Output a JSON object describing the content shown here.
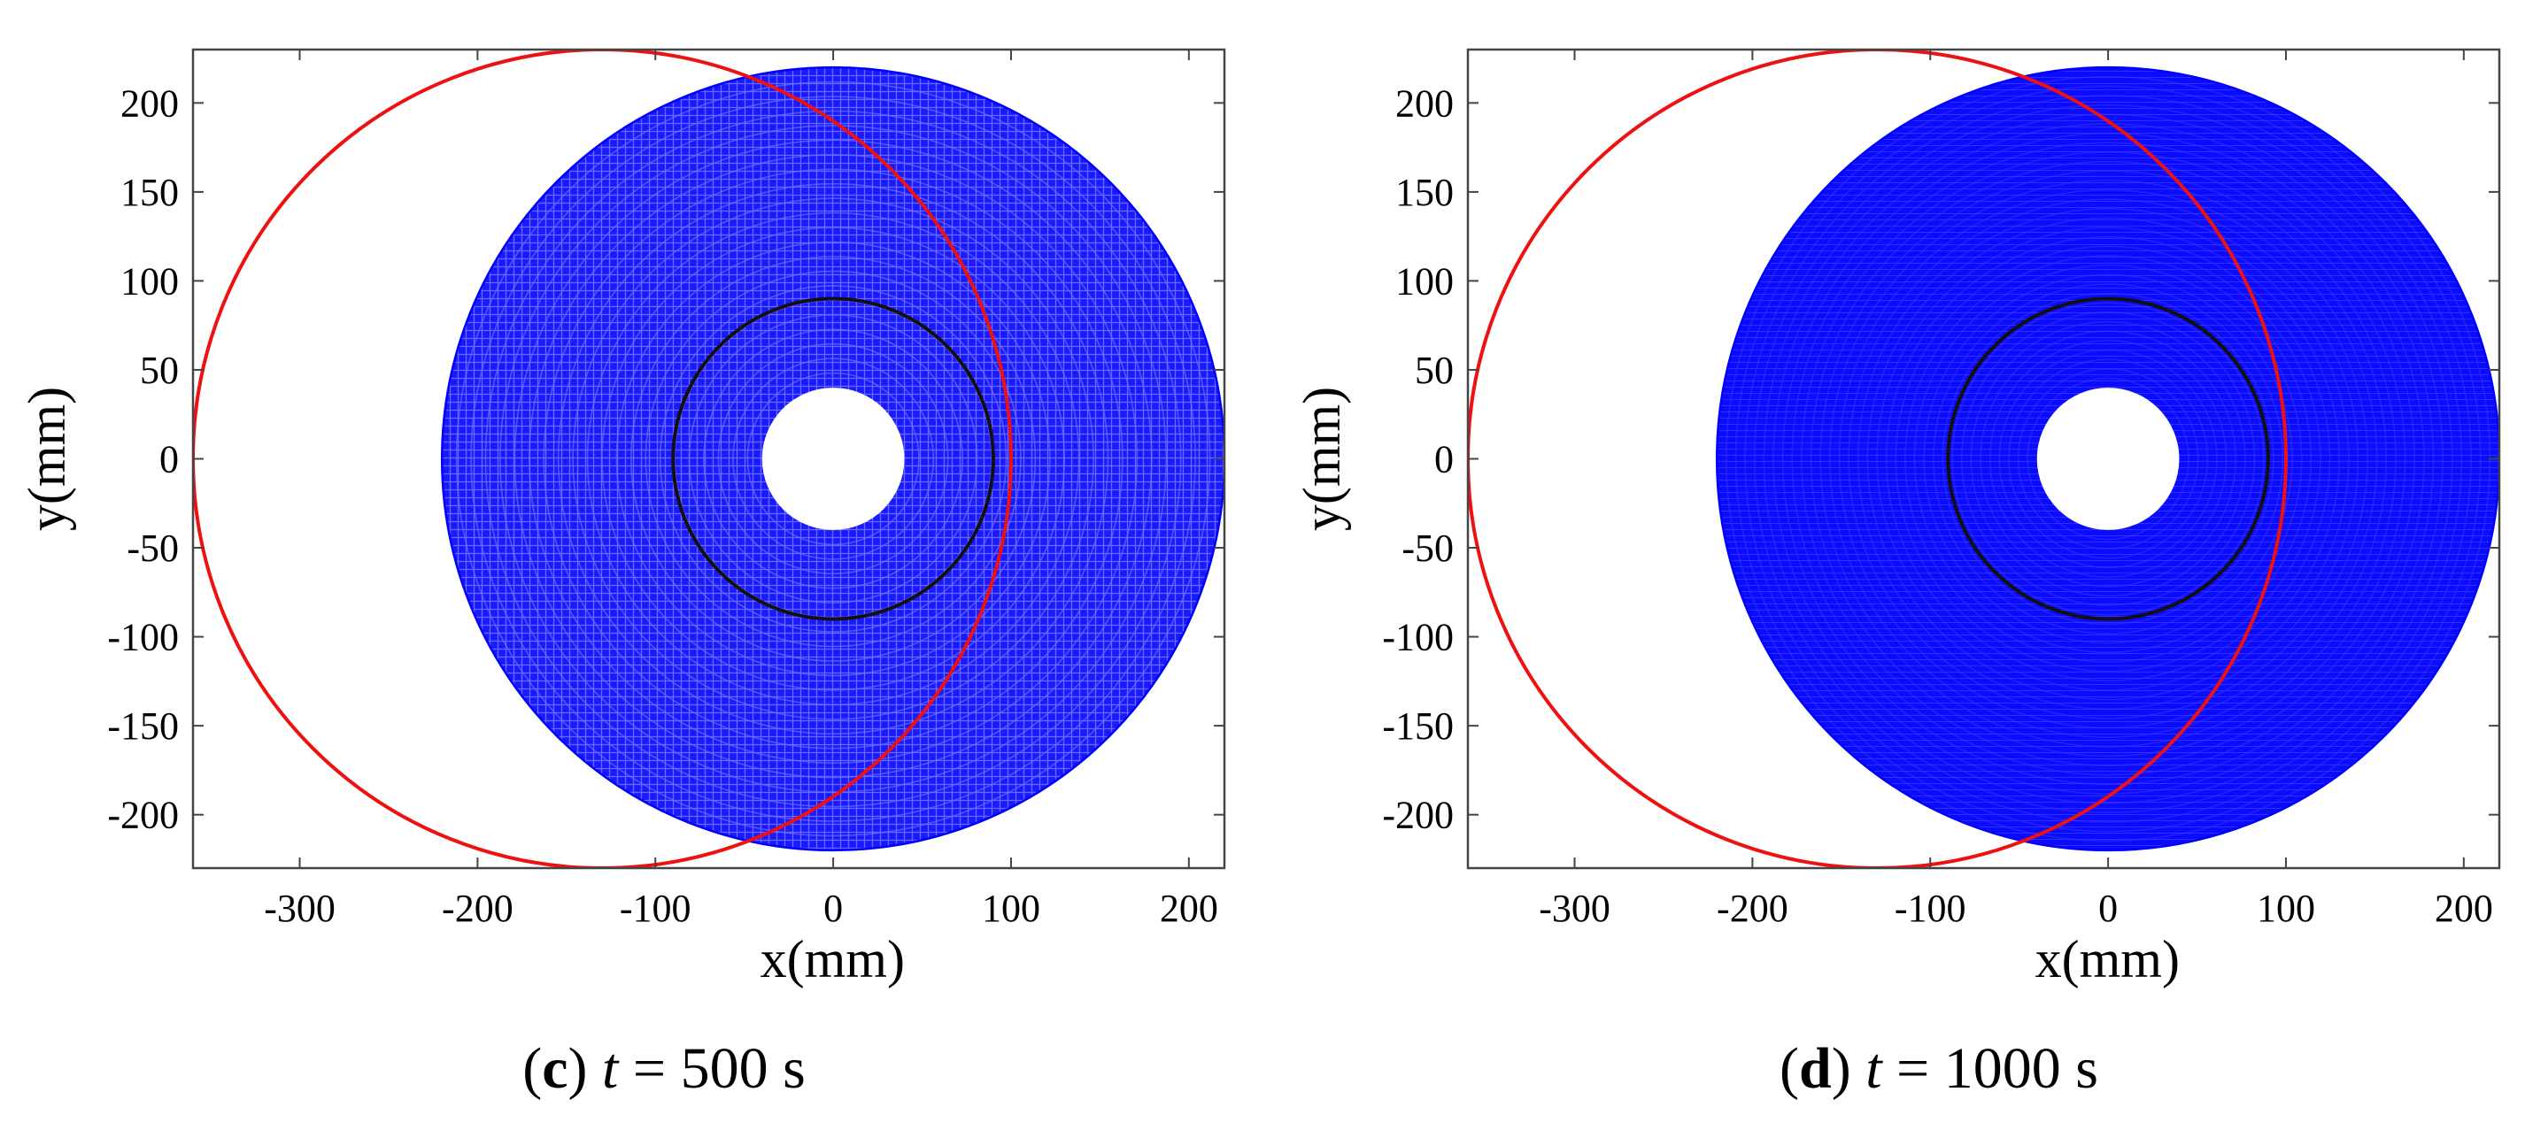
{
  "chart_data": [
    {
      "type": "scatter",
      "panel_label": "c",
      "caption_var": "t",
      "caption_eq": " = ",
      "caption_value": "500 s",
      "xlabel": "x(mm)",
      "ylabel": "y(mm)",
      "xlim": [
        -360,
        220
      ],
      "ylim": [
        -230,
        230
      ],
      "xticks": [
        -300,
        -200,
        -100,
        0,
        100,
        200
      ],
      "yticks": [
        200,
        150,
        100,
        50,
        0,
        -50,
        -100,
        -150,
        -200
      ],
      "xtick_labels": [
        "-300",
        "-200",
        "-100",
        "0",
        "100",
        "200"
      ],
      "ytick_labels": [
        "200",
        "150",
        "100",
        "50",
        "0",
        "-50",
        "-100",
        "-150",
        "-200"
      ],
      "grid": false,
      "series": [
        {
          "name": "trajectory",
          "shape": "annulus",
          "center": [
            0,
            0
          ],
          "inner_radius": 40,
          "outer_radius": 220,
          "color": "#0000ff",
          "density": "medium"
        },
        {
          "name": "black circle",
          "shape": "circle",
          "center": [
            0,
            0
          ],
          "radius": 90,
          "color": "#111111"
        },
        {
          "name": "red circle",
          "shape": "circle",
          "center": [
            -130,
            0
          ],
          "radius": 230,
          "color": "#ee1111"
        }
      ]
    },
    {
      "type": "scatter",
      "panel_label": "d",
      "caption_var": "t",
      "caption_eq": " = ",
      "caption_value": "1000 s",
      "xlabel": "x(mm)",
      "ylabel": "y(mm)",
      "xlim": [
        -360,
        220
      ],
      "ylim": [
        -230,
        230
      ],
      "xticks": [
        -300,
        -200,
        -100,
        0,
        100,
        200
      ],
      "yticks": [
        200,
        150,
        100,
        50,
        0,
        -50,
        -100,
        -150,
        -200
      ],
      "xtick_labels": [
        "-300",
        "-200",
        "-100",
        "0",
        "100",
        "200"
      ],
      "ytick_labels": [
        "200",
        "150",
        "100",
        "50",
        "0",
        "-50",
        "-100",
        "-150",
        "-200"
      ],
      "grid": false,
      "series": [
        {
          "name": "trajectory",
          "shape": "annulus",
          "center": [
            0,
            0
          ],
          "inner_radius": 40,
          "outer_radius": 220,
          "color": "#0000ff",
          "density": "high"
        },
        {
          "name": "black circle",
          "shape": "circle",
          "center": [
            0,
            0
          ],
          "radius": 90,
          "color": "#111111"
        },
        {
          "name": "red circle",
          "shape": "circle",
          "center": [
            -130,
            0
          ],
          "radius": 230,
          "color": "#ee1111"
        }
      ]
    }
  ]
}
